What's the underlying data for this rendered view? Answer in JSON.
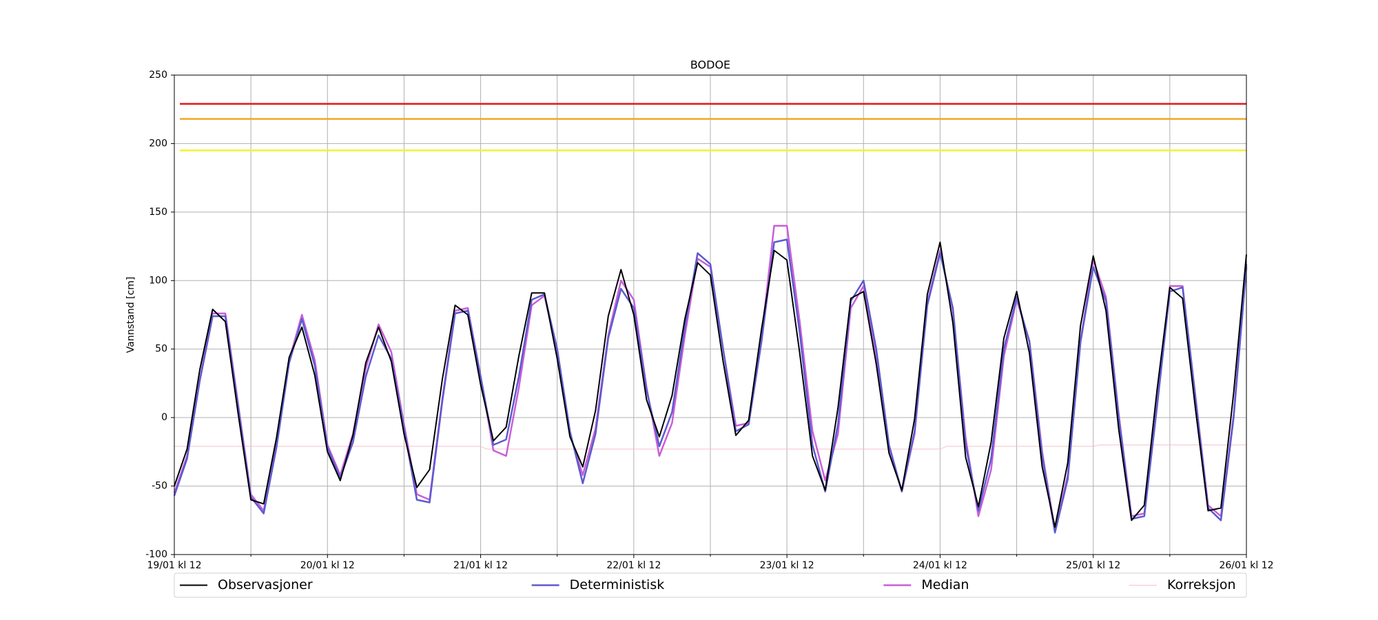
{
  "chart_data": {
    "type": "line",
    "title": "BODOE",
    "ylabel": "Vannstand [cm]",
    "x": [
      0,
      2,
      4,
      6,
      8,
      10,
      12,
      14,
      16,
      18,
      20,
      22,
      24,
      26,
      28,
      30,
      32,
      34,
      36,
      38,
      40,
      42,
      44,
      46,
      48,
      50,
      52,
      54,
      56,
      58,
      60,
      62,
      64,
      66,
      68,
      70,
      72,
      74,
      76,
      78,
      80,
      82,
      84,
      86,
      88,
      90,
      92,
      94,
      96,
      98,
      100,
      102,
      104,
      106,
      108,
      110,
      112,
      114,
      116,
      118,
      120,
      122,
      124,
      126,
      128,
      130,
      132,
      134,
      136,
      138,
      140,
      142,
      144,
      146,
      148,
      150,
      152,
      154,
      156,
      158,
      160,
      162,
      164,
      166,
      168
    ],
    "xlim": [
      0,
      168
    ],
    "xticks": [
      {
        "value": 0,
        "label": "19/01 kl 12"
      },
      {
        "value": 24,
        "label": "20/01 kl 12"
      },
      {
        "value": 48,
        "label": "21/01 kl 12"
      },
      {
        "value": 72,
        "label": "22/01 kl 12"
      },
      {
        "value": 96,
        "label": "23/01 kl 12"
      },
      {
        "value": 120,
        "label": "24/01 kl 12"
      },
      {
        "value": 144,
        "label": "25/01 kl 12"
      },
      {
        "value": 168,
        "label": "26/01 kl 12"
      }
    ],
    "xminorticks": [
      12,
      36,
      60,
      84,
      108,
      132,
      156
    ],
    "ylim": [
      -100,
      250
    ],
    "yticks": [
      -100,
      -50,
      0,
      50,
      100,
      150,
      200,
      250
    ],
    "grid": true,
    "legend": "bottom",
    "threshold_lines": [
      {
        "value": 229,
        "color": "#e31a1c"
      },
      {
        "value": 218,
        "color": "#f5a623"
      },
      {
        "value": 195,
        "color": "#f2f233"
      }
    ],
    "series": [
      {
        "name": "Observasjoner",
        "color": "#000000",
        "width": 2,
        "values": [
          -50,
          -23,
          35,
          79,
          70,
          3,
          -60,
          -63,
          -15,
          44,
          66,
          31,
          -25,
          -46,
          -13,
          40,
          66,
          41,
          -12,
          -51,
          -38,
          28,
          82,
          75,
          24,
          -17,
          -7,
          45,
          91,
          91,
          43,
          -14,
          -36,
          5,
          74,
          108,
          75,
          13,
          -14,
          16,
          72,
          113,
          104,
          41,
          -13,
          -2,
          64,
          122,
          115,
          47,
          -28,
          -53,
          7,
          87,
          92,
          39,
          -26,
          -53,
          -1,
          90,
          128,
          69,
          -29,
          -65,
          -18,
          58,
          92,
          47,
          -36,
          -80,
          -33,
          67,
          118,
          78,
          -9,
          -75,
          -64,
          20,
          95,
          87,
          7,
          -68,
          -66,
          18,
          119
        ]
      },
      {
        "name": "Deterministisk",
        "color": "#5b5bd0",
        "width": 2.5,
        "values": [
          -57,
          -30,
          27,
          74,
          74,
          8,
          -58,
          -70,
          -22,
          40,
          72,
          38,
          -22,
          -44,
          -18,
          30,
          60,
          43,
          -8,
          -60,
          -62,
          12,
          76,
          78,
          30,
          -20,
          -16,
          30,
          86,
          90,
          50,
          -10,
          -48,
          -12,
          58,
          94,
          80,
          20,
          -21,
          4,
          66,
          120,
          112,
          50,
          -10,
          -5,
          55,
          128,
          130,
          62,
          -20,
          -54,
          -5,
          85,
          100,
          50,
          -20,
          -54,
          -10,
          82,
          120,
          80,
          -20,
          -68,
          -30,
          50,
          88,
          55,
          -28,
          -84,
          -45,
          55,
          110,
          85,
          0,
          -74,
          -72,
          8,
          92,
          95,
          15,
          -66,
          -75,
          0,
          110
        ]
      },
      {
        "name": "Median",
        "color": "#c85fd8",
        "width": 2.5,
        "values": [
          -55,
          -28,
          28,
          76,
          76,
          10,
          -56,
          -68,
          -20,
          42,
          75,
          42,
          -20,
          -42,
          -12,
          36,
          68,
          48,
          -5,
          -56,
          -60,
          14,
          78,
          80,
          30,
          -24,
          -28,
          22,
          82,
          89,
          48,
          -12,
          -42,
          -8,
          60,
          100,
          86,
          22,
          -28,
          -4,
          60,
          116,
          110,
          50,
          -6,
          -4,
          58,
          140,
          140,
          70,
          -10,
          -46,
          -12,
          80,
          96,
          46,
          -22,
          -54,
          -12,
          84,
          122,
          78,
          -15,
          -72,
          -38,
          45,
          86,
          56,
          -25,
          -82,
          -42,
          56,
          115,
          88,
          2,
          -72,
          -70,
          10,
          96,
          96,
          16,
          -64,
          -72,
          2,
          112
        ]
      },
      {
        "name": "Korreksjon",
        "color": "#f4c0c8",
        "width": 1,
        "x": [
          0,
          48,
          49,
          120,
          121,
          144,
          145,
          168
        ],
        "values": [
          -21,
          -21,
          -23,
          -23,
          -21,
          -21,
          -20,
          -20
        ]
      }
    ]
  }
}
